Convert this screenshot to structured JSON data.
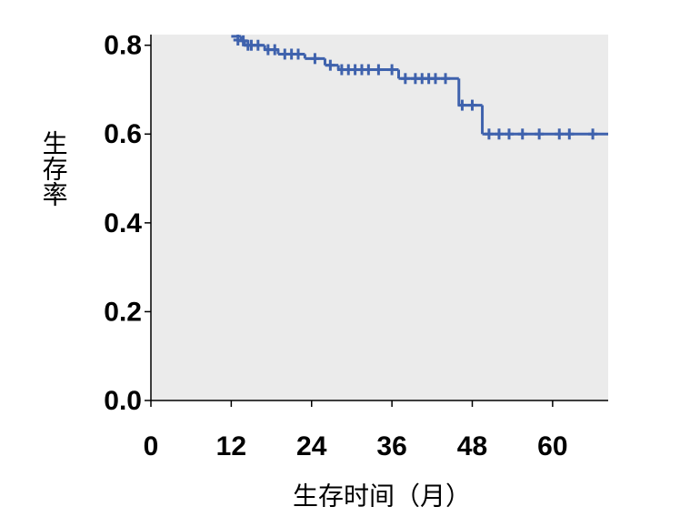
{
  "chart_data": {
    "type": "step",
    "xlabel": "生存时间（月）",
    "ylabel": "生存率",
    "series": [
      {
        "color": "#3f62ad",
        "x": [
          12,
          13.5,
          14,
          17,
          19,
          23,
          26,
          28,
          37,
          46,
          49.5
        ],
        "values": [
          0.82,
          0.81,
          0.8,
          0.79,
          0.78,
          0.77,
          0.755,
          0.745,
          0.725,
          0.665,
          0.6
        ],
        "censored_x": [
          13,
          13.8,
          14.5,
          15,
          16,
          17.5,
          18.5,
          20,
          21,
          22,
          24.5,
          26.8,
          28.5,
          29.5,
          30.5,
          31.5,
          32.5,
          34,
          36,
          38,
          39.5,
          40.5,
          41.5,
          42.5,
          44,
          46.5,
          48,
          50.5,
          52,
          53.5,
          55.5,
          58,
          61,
          62.5,
          66
        ],
        "censored_values": [
          0.82,
          0.81,
          0.8,
          0.8,
          0.8,
          0.79,
          0.79,
          0.78,
          0.78,
          0.78,
          0.77,
          0.755,
          0.745,
          0.745,
          0.745,
          0.745,
          0.745,
          0.745,
          0.745,
          0.725,
          0.725,
          0.725,
          0.725,
          0.725,
          0.725,
          0.665,
          0.665,
          0.6,
          0.6,
          0.6,
          0.6,
          0.6,
          0.6,
          0.6,
          0.6
        ]
      }
    ],
    "xlim": [
      0,
      68.3
    ],
    "xticks": [
      0,
      12,
      24,
      36,
      48,
      60
    ],
    "ylim": [
      0,
      0.824
    ],
    "yticks": [
      {
        "value": 0,
        "label": "0.0"
      },
      {
        "value": 0.2,
        "label": "0.2"
      },
      {
        "value": 0.4,
        "label": "0.4"
      },
      {
        "value": 0.6,
        "label": "0.6"
      },
      {
        "value": 0.8,
        "label": "0.8"
      }
    ]
  }
}
